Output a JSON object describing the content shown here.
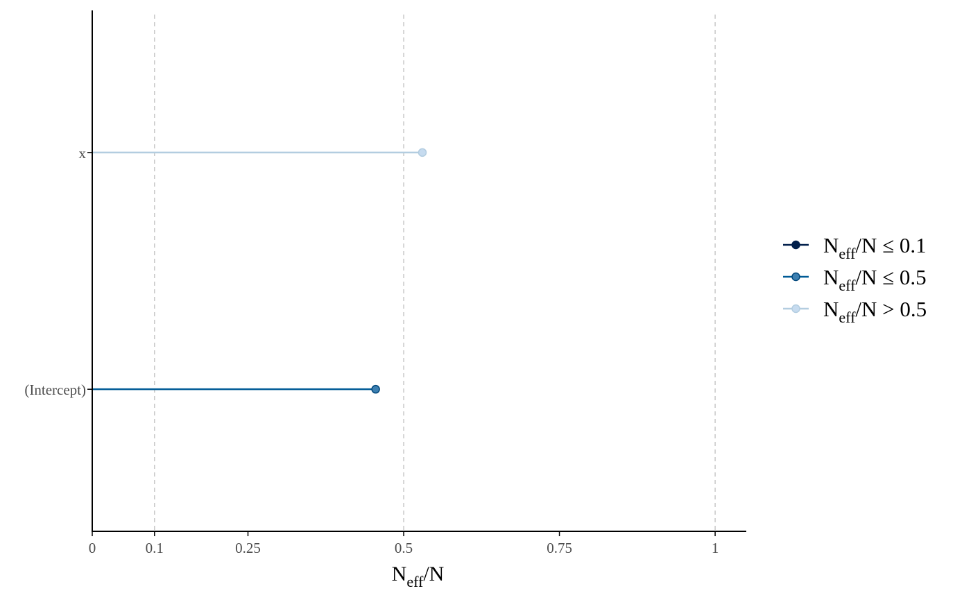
{
  "chart_data": {
    "type": "scatter",
    "title": "",
    "xlabel": {
      "main": "N",
      "sub": "eff",
      "tail": "/N"
    },
    "ylabel": "",
    "xlim": [
      0,
      1.05
    ],
    "x_ticks": [
      0,
      0.1,
      0.25,
      0.5,
      0.75,
      1
    ],
    "x_tick_labels": [
      "0",
      "0.1",
      "0.25",
      "0.5",
      "0.75",
      "1"
    ],
    "reference_lines": [
      0.1,
      0.5,
      1
    ],
    "grid": false,
    "categories": [
      "x",
      "(Intercept)"
    ],
    "points": [
      {
        "label": "x",
        "value": 0.53,
        "group": 2
      },
      {
        "label": "(Intercept)",
        "value": 0.455,
        "group": 1
      }
    ],
    "legend": {
      "position": "right",
      "entries": [
        {
          "main": "N",
          "sub": "eff",
          "tail": "/N ≤ 0.1",
          "line": "#011f4b",
          "fill": "#011f4b",
          "stroke": "#011f4b"
        },
        {
          "main": "N",
          "sub": "eff",
          "tail": "/N ≤ 0.5",
          "line": "#005b96",
          "fill": "#3c7fb1",
          "stroke": "#00467a"
        },
        {
          "main": "N",
          "sub": "eff",
          "tail": "/N > 0.5",
          "line": "#b3cde0",
          "fill": "#c6dbef",
          "stroke": "#b3cde0"
        }
      ]
    }
  }
}
